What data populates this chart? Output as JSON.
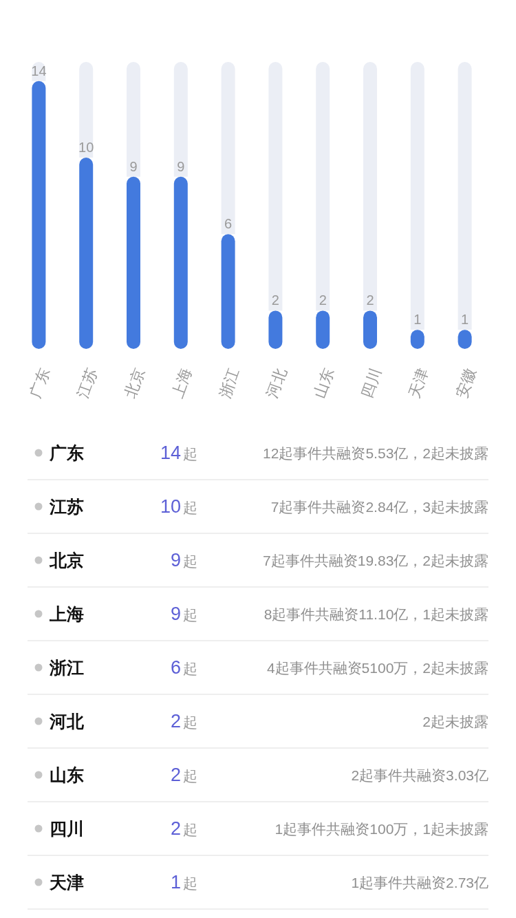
{
  "chart_data": [
    {
      "type": "bar",
      "stacked": true,
      "tick_labels": "x",
      "categories": [
        "广东",
        "江苏",
        "北京",
        "上海",
        "浙江",
        "河北",
        "山东",
        "四川",
        "天津",
        "安徽"
      ],
      "series": [
        {
          "color": "#437ade",
          "values": [
            14,
            10,
            9,
            9,
            6,
            2,
            2,
            2,
            1,
            1
          ],
          "value_labels": [
            "14",
            "10",
            "9",
            "9",
            "6",
            "2",
            "2",
            "2",
            "1",
            "1"
          ]
        },
        {
          "color": "#ebeef5",
          "values": [
            1,
            5,
            6,
            6,
            9,
            13,
            13,
            13,
            14,
            14
          ]
        }
      ]
    },
    {
      "type": "other",
      "categories": [
        "广东",
        "江苏",
        "北京",
        "上海",
        "浙江",
        "河北",
        "山东",
        "四川",
        "天津"
      ],
      "values": [
        14,
        10,
        9,
        9,
        6,
        2,
        2,
        2,
        1
      ],
      "value_labels": [
        "14起",
        "10起",
        "9起",
        "9起",
        "6起",
        "2起",
        "2起",
        "2起",
        "1起"
      ],
      "annotations": [
        "12起事件共融资5.53亿，2起未披露",
        "7起事件共融资2.84亿，3起未披露",
        "7起事件共融资19.83亿，2起未披露",
        "8起事件共融资11.10亿，1起未披露",
        "4起事件共融资5100万，2起未披露",
        "2起未披露",
        "2起事件共融资3.03亿",
        "1起事件共融资100万，1起未披露",
        "1起事件共融资2.73亿"
      ]
    }
  ]
}
